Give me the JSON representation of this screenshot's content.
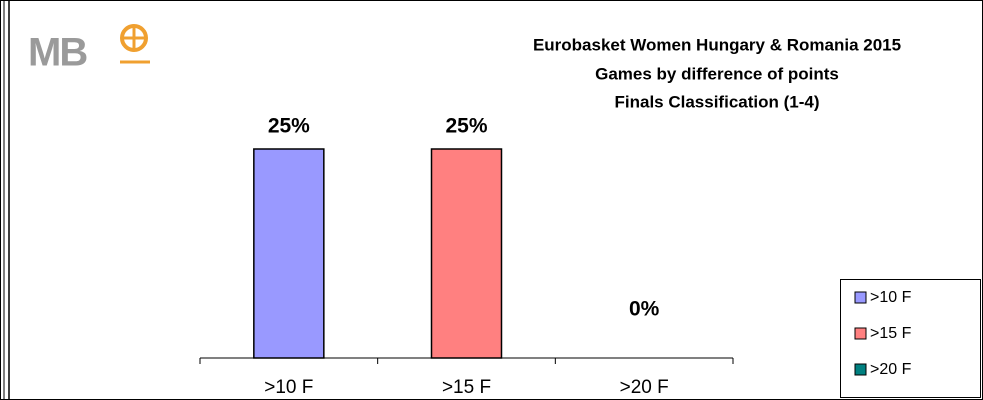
{
  "chart_data": {
    "type": "bar",
    "logo": "MB",
    "title": [
      "Eurobasket Women Hungary & Romania 2015",
      "Games by difference of points",
      "Finals Classification (1-4)"
    ],
    "categories": [
      ">10 F",
      ">15 F",
      ">20 F"
    ],
    "values": [
      25,
      25,
      0
    ],
    "value_labels": [
      "25%",
      "25%",
      "0%"
    ],
    "colors": [
      "#9999ff",
      "#ff8080",
      "#008080"
    ],
    "legend": "right"
  }
}
